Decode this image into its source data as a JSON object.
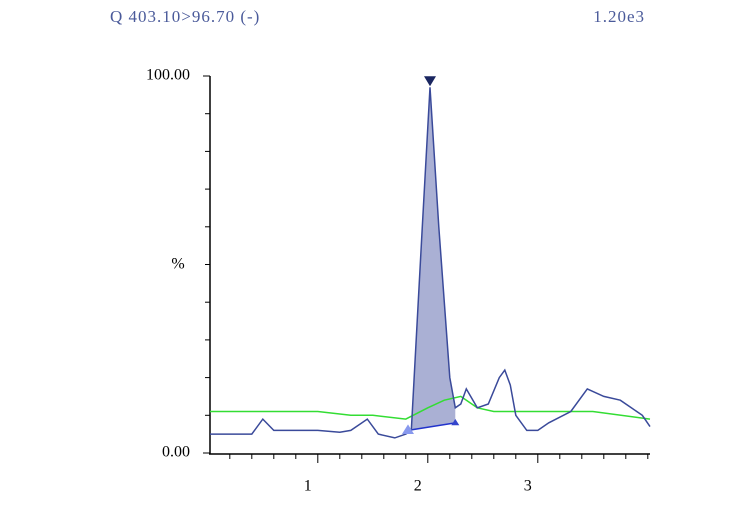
{
  "chart_data": {
    "type": "line",
    "title": "Q 403.10>96.70 (-)",
    "scale_label": "1.20e3",
    "y_label": "%",
    "xlim": [
      0.02,
      4.02
    ],
    "ylim": [
      0,
      100
    ],
    "xticks": [
      1,
      2,
      3
    ],
    "yticks": [
      {
        "value": 0,
        "label": "0.00"
      },
      {
        "value": 100,
        "label": "100.00"
      }
    ],
    "minor_xticks": [
      0.2,
      0.4,
      0.6,
      0.8,
      1.2,
      1.4,
      1.6,
      1.8,
      2.2,
      2.4,
      2.6,
      2.8,
      3.2,
      3.4,
      3.6,
      3.8,
      4.0
    ],
    "minor_yticks": [
      10,
      20,
      30,
      40,
      50,
      60,
      70,
      80,
      90
    ],
    "series": [
      {
        "name": "trace",
        "color": "#3a4a9a",
        "x": [
          0.02,
          0.4,
          0.5,
          0.6,
          0.8,
          1.0,
          1.2,
          1.3,
          1.45,
          1.55,
          1.7,
          1.8,
          1.85,
          1.95,
          2.02,
          2.1,
          2.2,
          2.25,
          2.3,
          2.35,
          2.45,
          2.55,
          2.65,
          2.7,
          2.75,
          2.8,
          2.9,
          3.0,
          3.1,
          3.3,
          3.45,
          3.6,
          3.75,
          3.85,
          3.95,
          4.02
        ],
        "values": [
          5,
          5,
          9,
          6,
          6,
          6,
          5.5,
          6,
          9,
          5,
          4,
          5,
          6,
          60,
          97,
          60,
          20,
          12,
          13,
          17,
          12,
          13,
          20,
          22,
          18,
          10,
          6,
          6,
          8,
          11,
          17,
          15,
          14,
          12,
          10,
          7
        ]
      },
      {
        "name": "reference",
        "color": "#33dd33",
        "x": [
          0.02,
          0.5,
          1.0,
          1.3,
          1.5,
          1.8,
          2.0,
          2.15,
          2.3,
          2.45,
          2.6,
          3.0,
          3.5,
          4.02
        ],
        "values": [
          11,
          11,
          11,
          10,
          10,
          9,
          12,
          14,
          15,
          12,
          11,
          11,
          11,
          9
        ]
      }
    ],
    "peak_fill": "#aab0d4",
    "peak_start": {
      "x": 1.82,
      "value": 6
    },
    "peak_apex": {
      "x": 2.02,
      "value": 97
    },
    "peak_end": {
      "x": 2.25,
      "value": 8
    }
  }
}
